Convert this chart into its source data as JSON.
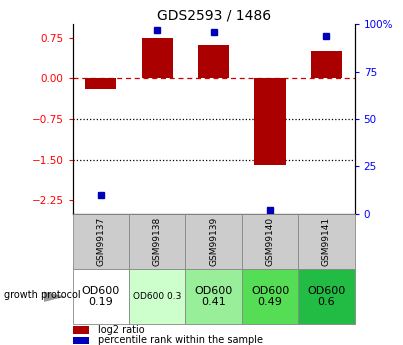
{
  "title": "GDS2593 / 1486",
  "samples": [
    "GSM99137",
    "GSM99138",
    "GSM99139",
    "GSM99140",
    "GSM99141"
  ],
  "log2_ratios": [
    -0.2,
    0.75,
    0.62,
    -1.6,
    0.5
  ],
  "percentile_ranks": [
    10,
    97,
    96,
    2,
    94
  ],
  "ylim": [
    -2.5,
    1.0
  ],
  "yticks_left": [
    0.75,
    0.0,
    -0.75,
    -1.5,
    -2.25
  ],
  "yticks_right": [
    100,
    75,
    50,
    25,
    0
  ],
  "bar_color": "#aa0000",
  "pct_color": "#0000bb",
  "zero_line_color": "#cc0000",
  "dotted_line_color": "#000000",
  "growth_labels": [
    "OD600\n0.19",
    "OD600 0.3",
    "OD600\n0.41",
    "OD600\n0.49",
    "OD600\n0.6"
  ],
  "growth_colors": [
    "#ffffff",
    "#ccffcc",
    "#99ee99",
    "#55dd55",
    "#22bb44"
  ],
  "growth_fontsizes": [
    8,
    6.5,
    8,
    8,
    8
  ],
  "header_color": "#cccccc",
  "bg_color": "#ffffff"
}
